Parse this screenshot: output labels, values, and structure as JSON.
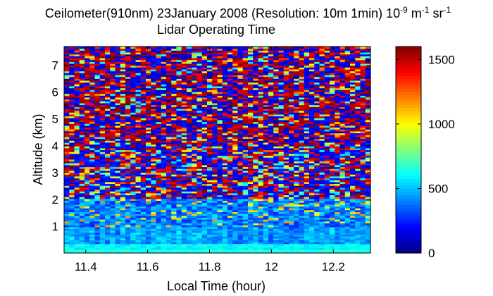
{
  "chart_data": {
    "type": "heatmap",
    "title_line1": "Ceilometer(910nm) 23January 2008 (Resolution: 10m 1min) 10",
    "title_exp1": "-9",
    "title_unit1": " m",
    "title_exp2": "-1",
    "title_unit2": " sr",
    "title_exp3": "-1",
    "title_line2": "Lidar Operating Time",
    "xlabel": "Local Time (hour)",
    "ylabel": "Altitude (km)",
    "xlim": [
      11.33,
      12.32
    ],
    "ylim": [
      0,
      7.7
    ],
    "xticks": [
      11.4,
      11.6,
      11.8,
      12.0,
      12.2
    ],
    "xtick_labels": [
      "11.4",
      "11.6",
      "11.8",
      "12",
      "12.2"
    ],
    "yticks": [
      1,
      2,
      3,
      4,
      5,
      6,
      7
    ],
    "ytick_labels": [
      "1",
      "2",
      "3",
      "4",
      "5",
      "6",
      "7"
    ],
    "colorbar": {
      "colormap": "jet",
      "range": [
        0,
        1600
      ],
      "ticks": [
        0,
        500,
        1000,
        1500
      ],
      "tick_labels": [
        "0",
        "500",
        "1000",
        "1500"
      ]
    },
    "time_resolution_min": 1,
    "altitude_resolution_m": 10,
    "value_profile": {
      "description_levels_km": [
        0.0,
        0.15,
        0.3,
        0.5,
        1.0,
        1.5,
        2.0,
        3.0,
        7.7
      ],
      "typical_values": [
        620,
        560,
        520,
        420,
        320,
        360,
        480,
        700,
        1100
      ]
    }
  }
}
